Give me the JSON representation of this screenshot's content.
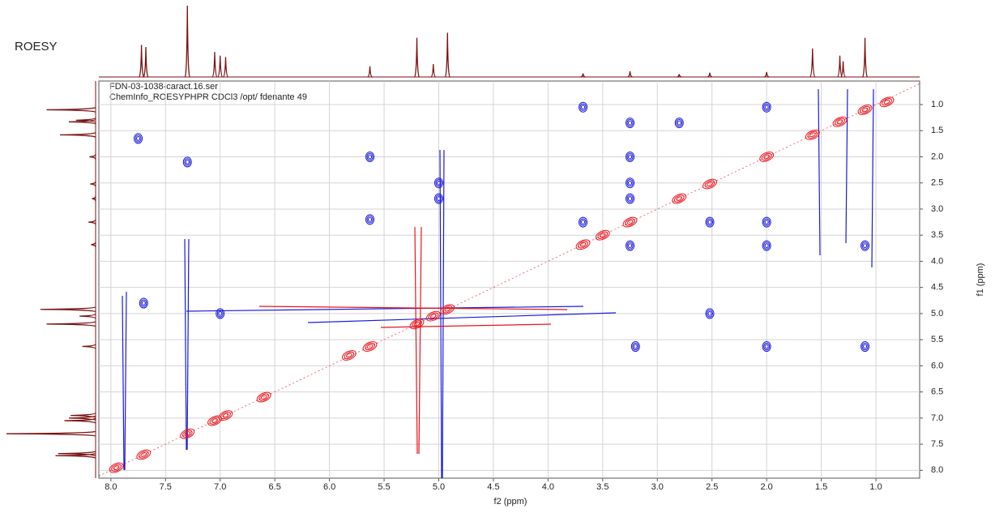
{
  "chart_data": {
    "type": "contour",
    "title": "ROESY",
    "annotations": [
      "FDN-03-1038-caract.16.ser",
      "ChemInfo_ROESYPHPR CDCl3 /opt/ fdenante 49"
    ],
    "xlabel": "f2 (ppm)",
    "ylabel": "f1 (ppm)",
    "xlim": [
      8.11,
      0.6
    ],
    "ylim": [
      0.55,
      8.15
    ],
    "xticks": [
      {
        "value": 8,
        "label": "8.0"
      },
      {
        "value": 7.5,
        "label": "7.5"
      },
      {
        "value": 7,
        "label": "7.0"
      },
      {
        "value": 6.5,
        "label": "6.5"
      },
      {
        "value": 6,
        "label": "6.0"
      },
      {
        "value": 5.5,
        "label": "5.5"
      },
      {
        "value": 5,
        "label": "5.0"
      },
      {
        "value": 4.5,
        "label": "4.5"
      },
      {
        "value": 4,
        "label": "4.0"
      },
      {
        "value": 3.5,
        "label": "3.5"
      },
      {
        "value": 3,
        "label": "3.0"
      },
      {
        "value": 2.5,
        "label": "2.5"
      },
      {
        "value": 2,
        "label": "2.0"
      },
      {
        "value": 1.5,
        "label": "1.5"
      },
      {
        "value": 1,
        "label": "1.0"
      }
    ],
    "yticks": [
      {
        "value": 1,
        "label": "1.0"
      },
      {
        "value": 1.5,
        "label": "1.5"
      },
      {
        "value": 2,
        "label": "2.0"
      },
      {
        "value": 2.5,
        "label": "2.5"
      },
      {
        "value": 3,
        "label": "3.0"
      },
      {
        "value": 3.5,
        "label": "3.5"
      },
      {
        "value": 4,
        "label": "4.0"
      },
      {
        "value": 4.5,
        "label": "4.5"
      },
      {
        "value": 5,
        "label": "5.0"
      },
      {
        "value": 5.5,
        "label": "5.5"
      },
      {
        "value": 6,
        "label": "6.0"
      },
      {
        "value": 6.5,
        "label": "6.5"
      },
      {
        "value": 7,
        "label": "7.0"
      },
      {
        "value": 7.5,
        "label": "7.5"
      },
      {
        "value": 8,
        "label": "8.0"
      }
    ],
    "grid": true,
    "series": [
      {
        "color": "#e8141c",
        "x": [
          7.95,
          7.7,
          7.3,
          7.05,
          6.95,
          6.6,
          5.63,
          5.82,
          5.2,
          5.05,
          4.92,
          3.68,
          3.5,
          3.25,
          2.8,
          2.52,
          2.0,
          1.58,
          1.33,
          1.1,
          0.9
        ],
        "y": [
          7.95,
          7.7,
          7.3,
          7.05,
          6.95,
          6.6,
          5.63,
          5.8,
          5.2,
          5.05,
          4.92,
          3.68,
          3.5,
          3.25,
          2.8,
          2.52,
          2.0,
          1.58,
          1.33,
          1.1,
          0.95
        ]
      },
      {
        "color": "#1a1adc",
        "x": [
          3.68,
          3.25,
          2.8,
          2.0,
          7.75,
          7.3,
          5.63,
          3.25,
          5.0,
          3.25,
          5.0,
          3.25,
          5.63,
          3.68,
          2.52,
          2.0,
          3.25,
          2.0,
          1.1,
          2.52,
          2.0,
          1.1,
          3.2,
          7.7,
          7.0
        ],
        "y": [
          1.05,
          1.35,
          1.35,
          1.05,
          1.65,
          2.1,
          2.0,
          2.0,
          2.5,
          2.5,
          2.8,
          2.8,
          3.2,
          3.25,
          3.25,
          3.25,
          3.7,
          3.7,
          3.7,
          5.0,
          5.63,
          5.63,
          5.63,
          4.8,
          5.0
        ]
      }
    ],
    "projection": {
      "x": [
        7.72,
        7.68,
        7.3,
        7.05,
        7.0,
        6.95,
        5.63,
        5.2,
        5.05,
        4.92,
        3.68,
        3.25,
        2.8,
        2.52,
        2.0,
        1.58,
        1.33,
        1.3,
        1.1
      ],
      "values": [
        0.45,
        0.42,
        1.0,
        0.35,
        0.3,
        0.28,
        0.15,
        0.55,
        0.18,
        0.62,
        0.05,
        0.08,
        0.04,
        0.06,
        0.07,
        0.4,
        0.3,
        0.22,
        0.55
      ]
    }
  }
}
